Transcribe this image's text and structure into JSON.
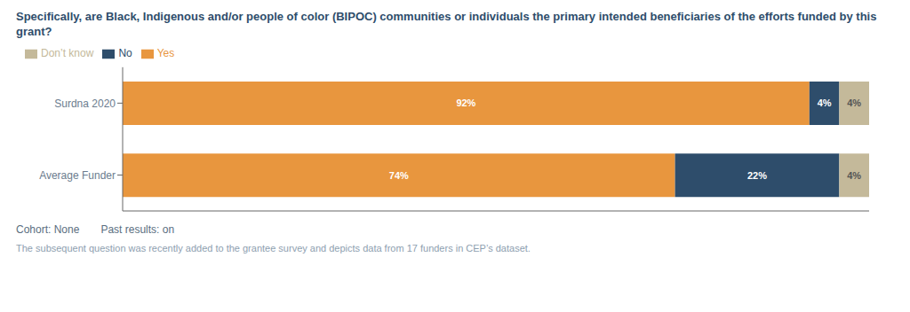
{
  "chart_data": {
    "type": "bar",
    "title": "Specifically, are Black, Indigenous and/or people of color (BIPOC) communities or individuals the primary intended beneficiaries of the efforts funded by this grant?",
    "orientation": "horizontal",
    "stacked": true,
    "categories": [
      "Surdna 2020",
      "Average Funder"
    ],
    "series": [
      {
        "name": "Yes",
        "color": "#E8963E",
        "values": [
          92,
          74
        ],
        "value_labels": [
          "92%",
          "74%"
        ]
      },
      {
        "name": "No",
        "color": "#2E4D6B",
        "values": [
          4,
          22
        ],
        "value_labels": [
          "4%",
          "22%"
        ]
      },
      {
        "name": "Don’t know",
        "color": "#C4B99A",
        "values": [
          4,
          4
        ],
        "value_labels": [
          "4%",
          "4%"
        ]
      }
    ],
    "xlim": [
      0,
      100
    ],
    "data_labels": true,
    "tick_labels": "y",
    "grid": false,
    "legend": "upper left",
    "annotations": [
      "Cohort: None",
      "Past results: on",
      "The subsequent question was recently added to the grantee survey and depicts data from 17 funders in CEP’s dataset."
    ]
  }
}
